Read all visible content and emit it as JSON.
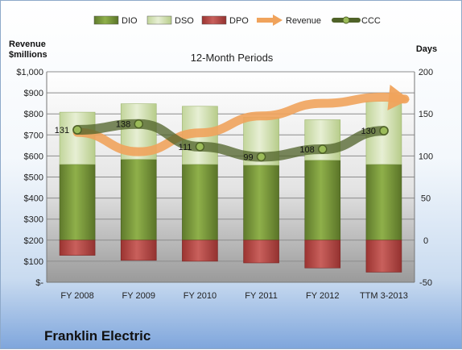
{
  "chart_data": {
    "type": "bar",
    "title": "12-Month Periods",
    "company": "Franklin Electric",
    "left_axis_label": [
      "Revenue",
      "$millions"
    ],
    "right_axis_label": "Days",
    "categories": [
      "FY 2008",
      "FY 2009",
      "FY 2010",
      "FY 2011",
      "FY 2012",
      "TTM 3-2013"
    ],
    "left_ticks": [
      "$-",
      "$100",
      "$200",
      "$300",
      "$400",
      "$500",
      "$600",
      "$700",
      "$800",
      "$900",
      "$1,000"
    ],
    "right_ticks": [
      "-50",
      "0",
      "50",
      "100",
      "150",
      "200"
    ],
    "left_ylim": [
      0,
      1000
    ],
    "right_ylim": [
      -50,
      200
    ],
    "grid": true,
    "legend_placement": "top",
    "series": [
      {
        "name": "DIO",
        "type": "bar",
        "color": "#77933c",
        "values": [
          90,
          96,
          90,
          89,
          95,
          90
        ]
      },
      {
        "name": "DSO",
        "type": "bar",
        "color": "#d7e4bd",
        "values": [
          62,
          66,
          69,
          57,
          48,
          75
        ]
      },
      {
        "name": "DPO",
        "type": "bar",
        "color": "#c0504d",
        "values": [
          -18,
          -24,
          -25,
          -27,
          -33,
          -38
        ]
      },
      {
        "name": "Revenue",
        "type": "arrow",
        "color": "#f0a35c",
        "values": [
          712,
          620,
          710,
          790,
          850,
          880
        ]
      },
      {
        "name": "CCC",
        "type": "line",
        "color": "#4f6228",
        "values": [
          131,
          138,
          111,
          99,
          108,
          130
        ],
        "labels": [
          "131",
          "138",
          "111",
          "99",
          "108",
          "130"
        ]
      }
    ]
  }
}
